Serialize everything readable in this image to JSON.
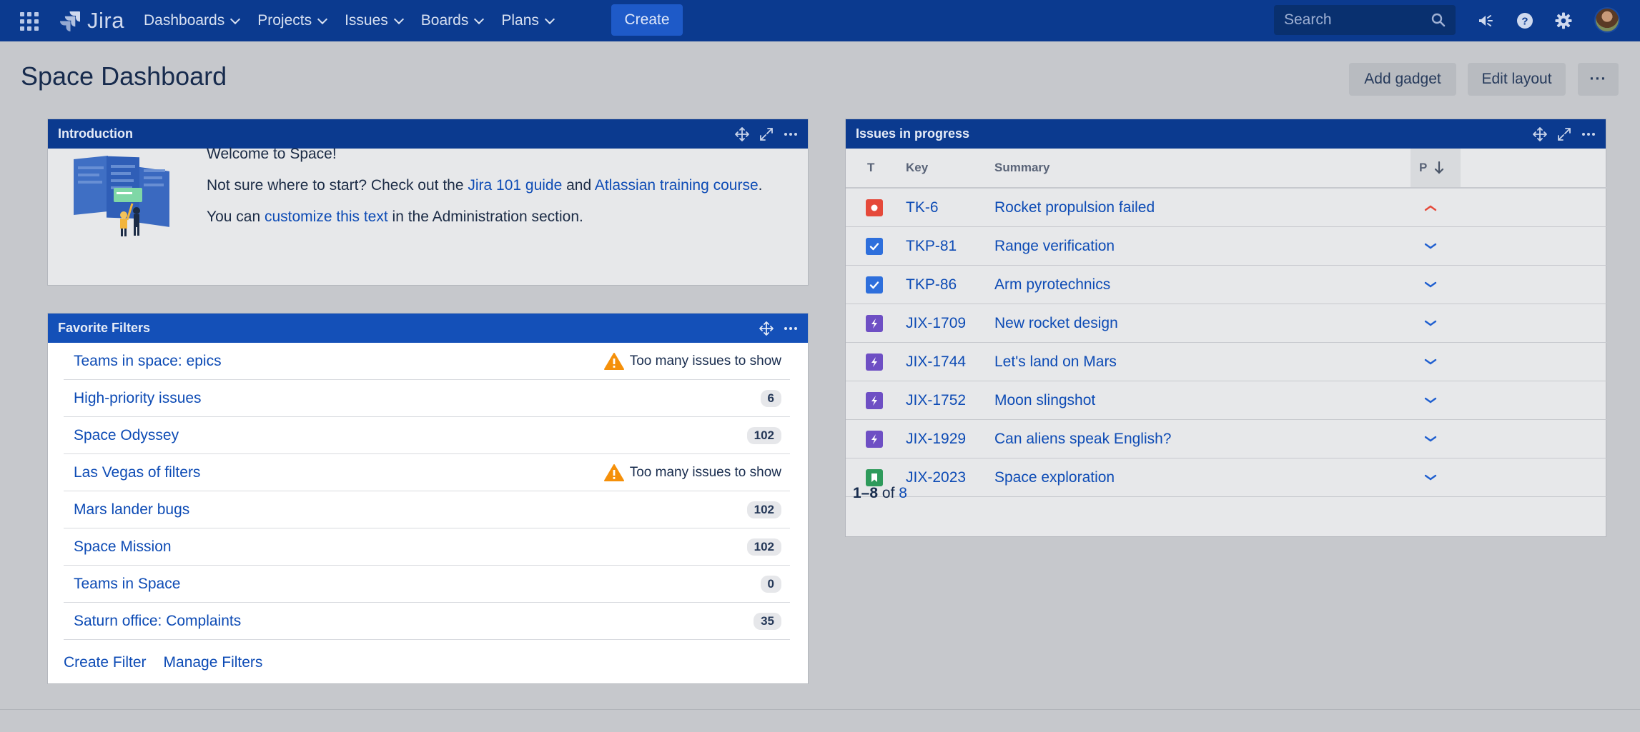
{
  "nav": {
    "logo": "Jira",
    "items": [
      {
        "label": "Dashboards"
      },
      {
        "label": "Projects"
      },
      {
        "label": "Issues"
      },
      {
        "label": "Boards"
      },
      {
        "label": "Plans"
      }
    ],
    "create_label": "Create",
    "search_placeholder": "Search"
  },
  "page": {
    "title": "Space Dashboard",
    "add_gadget": "Add gadget",
    "edit_layout": "Edit layout",
    "more": "···"
  },
  "intro": {
    "title": "Introduction",
    "welcome": "Welcome to Space!",
    "line2_pre": "Not sure where to start? Check out the ",
    "line2_link1": "Jira 101 guide",
    "line2_mid": " and ",
    "line2_link2": "Atlassian training course",
    "line2_post": ".",
    "line3_pre": "You can ",
    "line3_link": "customize this text",
    "line3_post": " in the Administration section."
  },
  "filters": {
    "title": "Favorite Filters",
    "rows": [
      {
        "name": "Teams in space: epics",
        "count": null,
        "warning": "Too many issues to show"
      },
      {
        "name": "High-priority issues",
        "count": "6",
        "warning": null
      },
      {
        "name": "Space Odyssey",
        "count": "102",
        "warning": null
      },
      {
        "name": "Las Vegas of filters",
        "count": null,
        "warning": "Too many issues to show"
      },
      {
        "name": "Mars lander bugs",
        "count": "102",
        "warning": null
      },
      {
        "name": "Space Mission",
        "count": "102",
        "warning": null
      },
      {
        "name": "Teams in Space",
        "count": "0",
        "warning": null
      },
      {
        "name": "Saturn office: Complaints",
        "count": "35",
        "warning": null
      }
    ],
    "create_filter": "Create Filter",
    "manage_filters": "Manage Filters"
  },
  "issues": {
    "title": "Issues in progress",
    "columns": {
      "type": "T",
      "key": "Key",
      "summary": "Summary",
      "priority": "P"
    },
    "rows": [
      {
        "type": "bug",
        "key": "TK-6",
        "summary": "Rocket propulsion failed",
        "priority": "high"
      },
      {
        "type": "task",
        "key": "TKP-81",
        "summary": "Range verification",
        "priority": "low"
      },
      {
        "type": "task",
        "key": "TKP-86",
        "summary": "Arm pyrotechnics",
        "priority": "low"
      },
      {
        "type": "epic",
        "key": "JIX-1709",
        "summary": "New rocket design",
        "priority": "low"
      },
      {
        "type": "epic",
        "key": "JIX-1744",
        "summary": "Let's land on Mars",
        "priority": "low"
      },
      {
        "type": "epic",
        "key": "JIX-1752",
        "summary": "Moon slingshot",
        "priority": "low"
      },
      {
        "type": "epic",
        "key": "JIX-1929",
        "summary": "Can aliens speak English?",
        "priority": "low"
      },
      {
        "type": "story",
        "key": "JIX-2023",
        "summary": "Space exploration",
        "priority": "low"
      }
    ],
    "footer_range": "1–8",
    "footer_of": "of",
    "footer_total": "8"
  },
  "colors": {
    "topnav": "#0b3a8f",
    "link": "#0d4bb5",
    "bug": "#e5493a",
    "task": "#2e6fdc",
    "epic": "#6e4fc4",
    "story": "#2e9a5b",
    "warning": "#f5900a"
  }
}
